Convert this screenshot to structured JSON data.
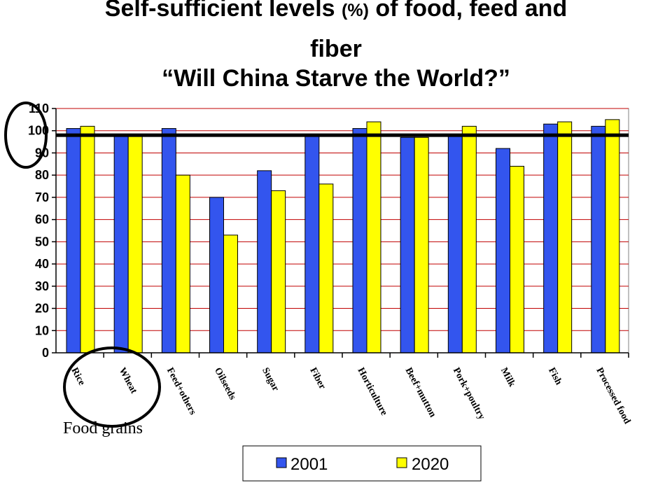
{
  "title_line1_prefix": "Self-sufficient levels ",
  "title_line1_unit": "(%)",
  "title_line1_suffix": " of food, feed and",
  "title_line2": "fiber",
  "title_line3": "“Will China Starve the World?”",
  "annotation": "Food grains",
  "colors": {
    "s2001": "#3355ee",
    "s2020": "#ffff00",
    "gridline": "#c00000"
  },
  "chart_data": {
    "type": "bar",
    "categories": [
      "Rice",
      "Wheat",
      "Feed+others",
      "Oilseeds",
      "Sugar",
      "Fiber",
      "Horticulture",
      "Beef+mutton",
      "Pork+poultry",
      "Milk",
      "Fish",
      "Processed food"
    ],
    "series": [
      {
        "name": "2001",
        "values": [
          101,
          98,
          101,
          70,
          82,
          98,
          101,
          97,
          98,
          92,
          103,
          102
        ]
      },
      {
        "name": "2020",
        "values": [
          102,
          98,
          80,
          53,
          73,
          76,
          104,
          97,
          102,
          84,
          104,
          105
        ]
      }
    ],
    "yticks": [
      "0",
      "10",
      "20",
      "30",
      "40",
      "50",
      "60",
      "70",
      "80",
      "90",
      "100",
      "110"
    ],
    "ylim": [
      0,
      110
    ],
    "reference_line": 98,
    "grid": true,
    "legend_placement": "bottom"
  }
}
